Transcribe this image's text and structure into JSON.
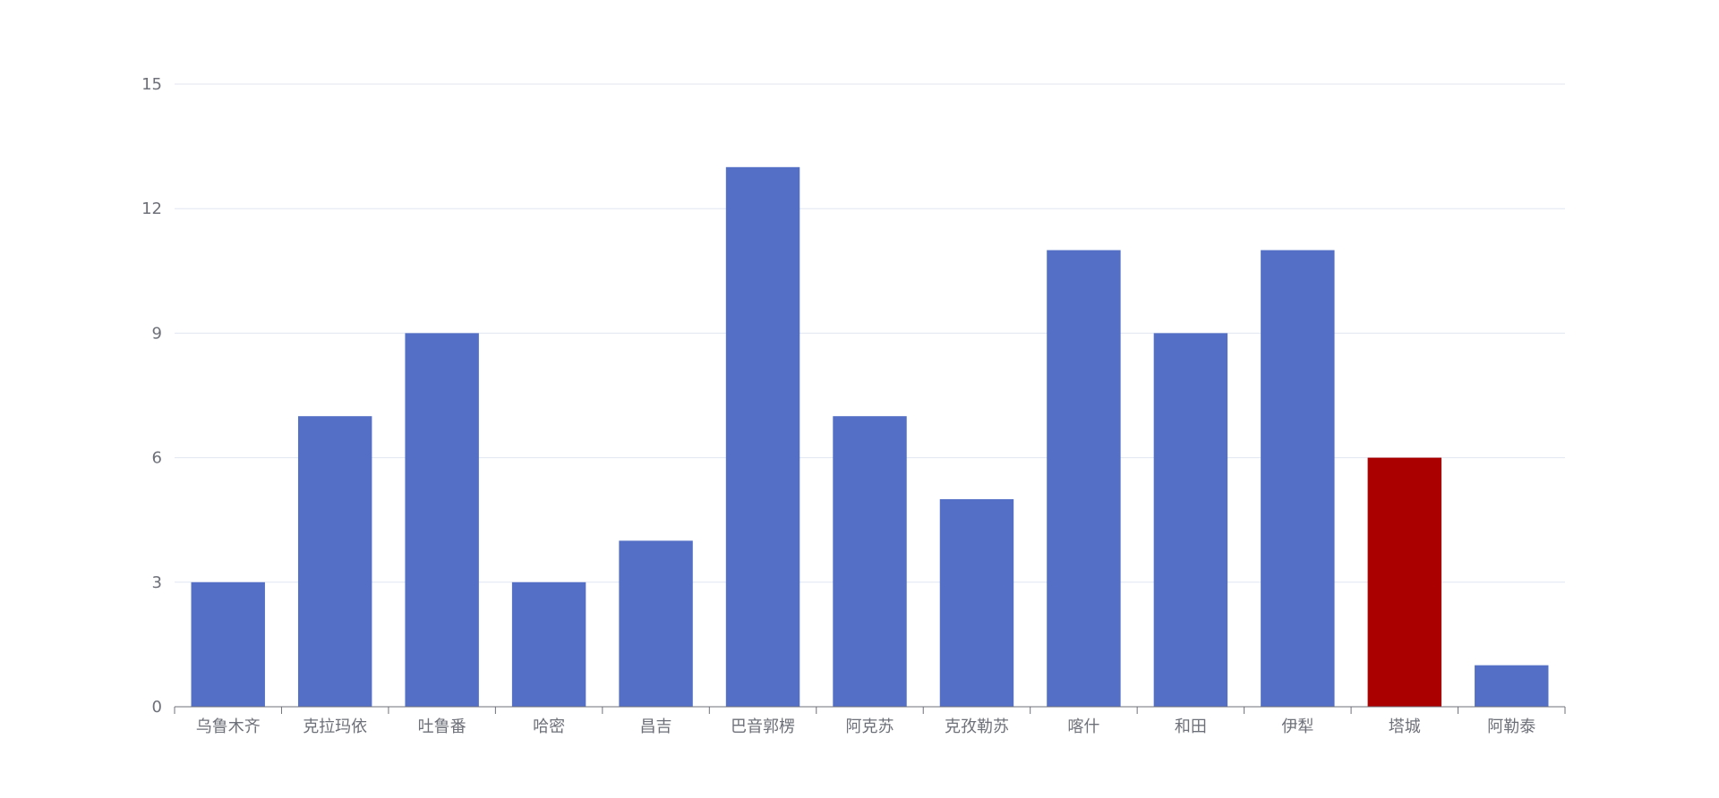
{
  "chart_data": {
    "type": "bar",
    "title": "",
    "xlabel": "",
    "ylabel": "",
    "categories": [
      "乌鲁木齐",
      "克拉玛依",
      "吐鲁番",
      "哈密",
      "昌吉",
      "巴音郭楞",
      "阿克苏",
      "克孜勒苏",
      "喀什",
      "和田",
      "伊犁",
      "塔城",
      "阿勒泰"
    ],
    "values": [
      3,
      7,
      9,
      3,
      4,
      13,
      7,
      5,
      11,
      9,
      11,
      6,
      1
    ],
    "ylim": [
      0,
      15
    ],
    "yticks": [
      0,
      3,
      6,
      9,
      12,
      15
    ],
    "grid": true,
    "legend": "none",
    "colors": {
      "default_bar": "#5470c6",
      "highlight_bar": "#aa0000",
      "highlight_category": "塔城",
      "grid": "#e0e6f1",
      "axis": "#6e7079",
      "tick_label": "#6e7079"
    }
  }
}
